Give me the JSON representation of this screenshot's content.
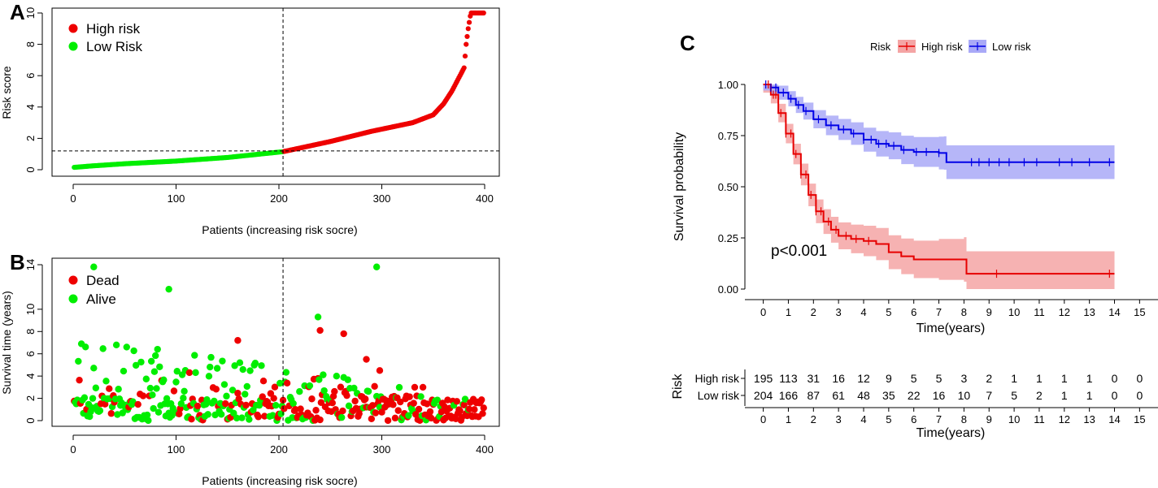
{
  "colors": {
    "high": "#ee0000",
    "low": "#00ee00",
    "km_high": "#e60000",
    "km_low": "#0000e6"
  },
  "chart_data": [
    {
      "panel": "A",
      "type": "scatter",
      "xlabel": "Patients (increasing risk socre)",
      "ylabel": "Risk score",
      "xlim": [
        0,
        400
      ],
      "ylim": [
        0,
        10
      ],
      "xticks": [
        0,
        100,
        200,
        300,
        400
      ],
      "yticks": [
        0,
        2,
        4,
        6,
        8,
        10
      ],
      "cutoff_patient": 204,
      "cutoff_score": 1.2,
      "legend": [
        "High risk",
        "Low Risk"
      ],
      "n_patients": 399,
      "score_curve": [
        [
          1,
          0.15
        ],
        [
          20,
          0.25
        ],
        [
          50,
          0.38
        ],
        [
          100,
          0.55
        ],
        [
          150,
          0.78
        ],
        [
          204,
          1.15
        ],
        [
          250,
          1.8
        ],
        [
          290,
          2.45
        ],
        [
          330,
          3.0
        ],
        [
          350,
          3.5
        ],
        [
          360,
          4.2
        ],
        [
          368,
          5.0
        ],
        [
          376,
          6.0
        ],
        [
          380,
          6.5
        ],
        [
          382,
          8.0
        ],
        [
          384,
          9.0
        ],
        [
          386,
          9.8
        ],
        [
          387,
          10.0
        ],
        [
          399,
          10.0
        ]
      ]
    },
    {
      "panel": "B",
      "type": "scatter",
      "xlabel": "Patients (increasing risk socre)",
      "ylabel": "Survival time (years)",
      "xlim": [
        0,
        400
      ],
      "ylim": [
        0,
        14
      ],
      "xticks": [
        0,
        100,
        200,
        300,
        400
      ],
      "yticks": [
        0,
        2,
        4,
        6,
        8,
        10,
        14
      ],
      "cutoff_patient": 204,
      "legend": [
        "Dead",
        "Alive"
      ],
      "notable_points": [
        [
          20,
          13.8,
          "Alive"
        ],
        [
          93,
          11.8,
          "Alive"
        ],
        [
          295,
          13.8,
          "Alive"
        ],
        [
          238,
          9.3,
          "Alive"
        ],
        [
          240,
          8.1,
          "Dead"
        ],
        [
          160,
          7.2,
          "Dead"
        ],
        [
          263,
          7.8,
          "Dead"
        ],
        [
          285,
          5.5,
          "Dead"
        ],
        [
          298,
          4.5,
          "Dead"
        ]
      ]
    },
    {
      "panel": "C",
      "type": "line",
      "title": "Risk",
      "xlabel": "Time(years)",
      "ylabel": "Survival probability",
      "xlim": [
        0,
        15
      ],
      "ylim": [
        0,
        1
      ],
      "xticks": [
        0,
        1,
        2,
        3,
        4,
        5,
        6,
        7,
        8,
        9,
        10,
        11,
        12,
        13,
        14,
        15
      ],
      "yticks": [
        "0.00",
        "0.25",
        "0.50",
        "0.75",
        "1.00"
      ],
      "annotation": "p<0.001",
      "series": [
        {
          "name": "High risk",
          "x": [
            0,
            0.3,
            0.6,
            0.9,
            1.2,
            1.5,
            1.8,
            2.1,
            2.4,
            2.7,
            3.0,
            3.5,
            4.0,
            4.5,
            5.0,
            5.5,
            6.0,
            7.0,
            8.0,
            8.1,
            14.0
          ],
          "y": [
            1.0,
            0.95,
            0.86,
            0.76,
            0.66,
            0.56,
            0.46,
            0.38,
            0.33,
            0.29,
            0.26,
            0.245,
            0.235,
            0.22,
            0.18,
            0.16,
            0.145,
            0.145,
            0.145,
            0.075,
            0.075
          ]
        },
        {
          "name": "Low risk",
          "x": [
            0,
            0.3,
            0.6,
            1.0,
            1.3,
            1.6,
            2.0,
            2.5,
            3.0,
            3.5,
            4.0,
            4.5,
            5.0,
            5.5,
            6.0,
            7.0,
            7.2,
            7.3,
            14.0
          ],
          "y": [
            1.0,
            0.985,
            0.96,
            0.93,
            0.9,
            0.87,
            0.83,
            0.8,
            0.78,
            0.76,
            0.73,
            0.71,
            0.7,
            0.68,
            0.67,
            0.665,
            0.665,
            0.62,
            0.62
          ]
        }
      ],
      "risk_table": {
        "title": "Risk",
        "times": [
          0,
          1,
          2,
          3,
          4,
          5,
          6,
          7,
          8,
          9,
          10,
          11,
          12,
          13,
          14,
          15
        ],
        "rows": [
          {
            "name": "High risk",
            "counts": [
              195,
              113,
              31,
              16,
              12,
              9,
              5,
              5,
              3,
              2,
              1,
              1,
              1,
              1,
              0,
              0
            ]
          },
          {
            "name": "Low risk",
            "counts": [
              204,
              166,
              87,
              61,
              48,
              35,
              22,
              16,
              10,
              7,
              5,
              2,
              1,
              1,
              0,
              0
            ]
          }
        ],
        "xlabel": "Time(years)"
      }
    }
  ],
  "panel_labels": [
    "A",
    "B",
    "C"
  ]
}
